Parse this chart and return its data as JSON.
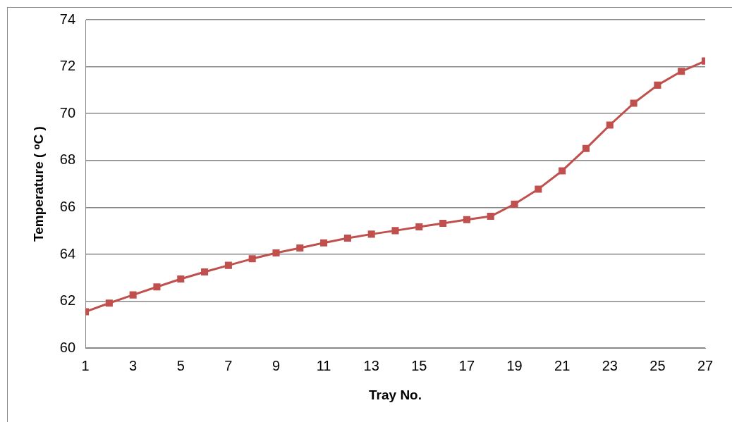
{
  "chart_data": {
    "type": "line",
    "xlabel": "Tray No.",
    "ylabel": "Temperature ( ᵒC )",
    "x": [
      1,
      2,
      3,
      4,
      5,
      6,
      7,
      8,
      9,
      10,
      11,
      12,
      13,
      14,
      15,
      16,
      17,
      18,
      19,
      20,
      21,
      22,
      23,
      24,
      25,
      26,
      27
    ],
    "xlim": [
      1,
      27
    ],
    "xticks": [
      1,
      3,
      5,
      7,
      9,
      11,
      13,
      15,
      17,
      19,
      21,
      23,
      25,
      27
    ],
    "series": [
      {
        "color": "#c0504d",
        "values": [
          61.55,
          61.92,
          62.27,
          62.61,
          62.95,
          63.25,
          63.53,
          63.81,
          64.06,
          64.27,
          64.49,
          64.69,
          64.86,
          65.01,
          65.17,
          65.32,
          65.48,
          65.62,
          66.14,
          66.78,
          67.56,
          68.51,
          69.51,
          70.44,
          71.21,
          71.8,
          72.24
        ]
      }
    ],
    "ylim": [
      60,
      74
    ],
    "yticks": [
      60,
      62,
      64,
      66,
      68,
      70,
      72,
      74
    ],
    "grid": "y",
    "legend": false,
    "marker": "square",
    "line_style": "solid"
  }
}
